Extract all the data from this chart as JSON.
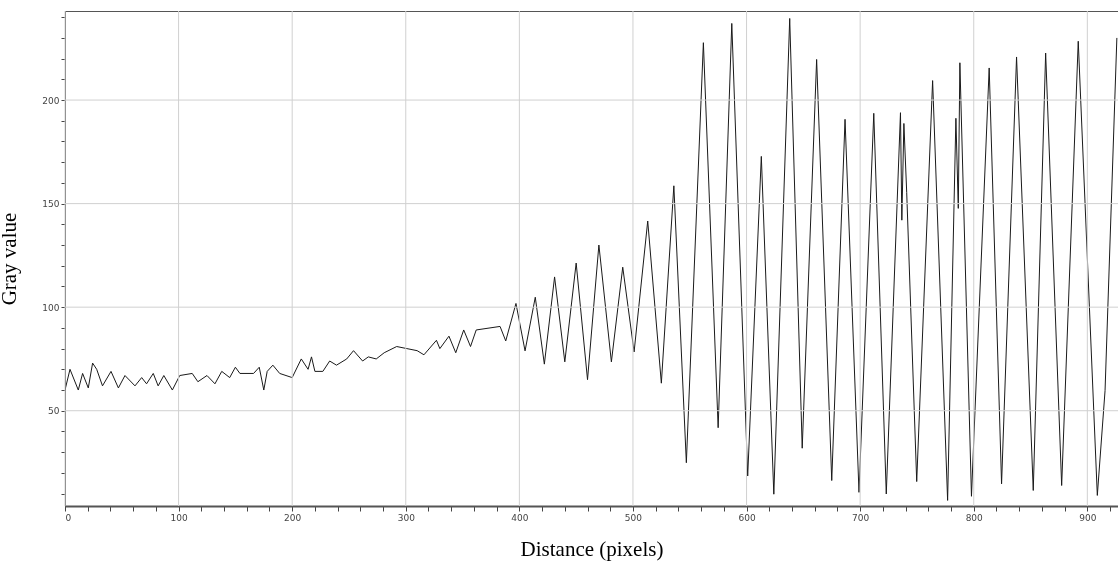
{
  "chart_data": {
    "type": "line",
    "xlabel": "Distance (pixels)",
    "ylabel": "Gray value",
    "xlim": [
      0,
      927
    ],
    "ylim": [
      4,
      243
    ],
    "xticks": [
      0,
      {
        "value": 20,
        "label": null
      },
      {
        "value": 40,
        "label": null
      },
      {
        "value": 60,
        "label": null
      },
      {
        "value": 80,
        "label": null
      },
      100,
      {
        "value": 120,
        "label": null
      },
      {
        "value": 140,
        "label": null
      },
      {
        "value": 160,
        "label": null
      },
      {
        "value": 180,
        "label": null
      },
      200,
      {
        "value": 220,
        "label": null
      },
      {
        "value": 240,
        "label": null
      },
      {
        "value": 260,
        "label": null
      },
      {
        "value": 280,
        "label": null
      },
      300,
      {
        "value": 320,
        "label": null
      },
      {
        "value": 340,
        "label": null
      },
      {
        "value": 360,
        "label": null
      },
      {
        "value": 380,
        "label": null
      },
      400,
      {
        "value": 420,
        "label": null
      },
      {
        "value": 440,
        "label": null
      },
      {
        "value": 460,
        "label": null
      },
      {
        "value": 480,
        "label": null
      },
      500,
      {
        "value": 520,
        "label": null
      },
      {
        "value": 540,
        "label": null
      },
      {
        "value": 560,
        "label": null
      },
      {
        "value": 580,
        "label": null
      },
      600,
      {
        "value": 620,
        "label": null
      },
      {
        "value": 640,
        "label": null
      },
      {
        "value": 660,
        "label": null
      },
      {
        "value": 680,
        "label": null
      },
      700,
      {
        "value": 720,
        "label": null
      },
      {
        "value": 740,
        "label": null
      },
      {
        "value": 760,
        "label": null
      },
      {
        "value": 780,
        "label": null
      },
      800,
      {
        "value": 820,
        "label": null
      },
      {
        "value": 840,
        "label": null
      },
      {
        "value": 860,
        "label": null
      },
      {
        "value": 880,
        "label": null
      },
      900,
      {
        "value": 920,
        "label": null
      }
    ],
    "yticks": [
      {
        "value": 10,
        "label": null
      },
      {
        "value": 20,
        "label": null
      },
      {
        "value": 30,
        "label": null
      },
      {
        "value": 40,
        "label": null
      },
      50,
      {
        "value": 60,
        "label": null
      },
      {
        "value": 70,
        "label": null
      },
      {
        "value": 80,
        "label": null
      },
      {
        "value": 90,
        "label": null
      },
      100,
      {
        "value": 110,
        "label": null
      },
      {
        "value": 120,
        "label": null
      },
      {
        "value": 130,
        "label": null
      },
      {
        "value": 140,
        "label": null
      },
      150,
      {
        "value": 160,
        "label": null
      },
      {
        "value": 170,
        "label": null
      },
      {
        "value": 180,
        "label": null
      },
      {
        "value": 190,
        "label": null
      },
      200,
      {
        "value": 210,
        "label": null
      },
      {
        "value": 220,
        "label": null
      },
      {
        "value": 230,
        "label": null
      },
      {
        "value": 240,
        "label": null
      }
    ],
    "grid": true,
    "marker": "none",
    "line_style": "solid",
    "series": [
      {
        "color": "#1a1a1a",
        "x": [
          0,
          4.4,
          11.7,
          15.5,
          20.5,
          24.3,
          27.9,
          33,
          40.5,
          47,
          52.8,
          61.6,
          67.5,
          71.8,
          77.7,
          82,
          87,
          94.5,
          101,
          112,
          117,
          125,
          132,
          138,
          145,
          150,
          154,
          166,
          171,
          175,
          178,
          183,
          189,
          200,
          208,
          214,
          217,
          220,
          227,
          233,
          239,
          248,
          254,
          262,
          267,
          274,
          281,
          292,
          301,
          310,
          316,
          327,
          330,
          338,
          344,
          351,
          357,
          362,
          383,
          388,
          397,
          405,
          414,
          422,
          431,
          440,
          450,
          460,
          470,
          481,
          491,
          501,
          513,
          525,
          536,
          547,
          562,
          575,
          587,
          601,
          613,
          624,
          638,
          649,
          661.7,
          675,
          686.7,
          699,
          712,
          723,
          735.5,
          736.7,
          738.5,
          741,
          749.8,
          763.8,
          777,
          784.3,
          786.4,
          787.8,
          798,
          813.6,
          824.5,
          837.7,
          852.4,
          863.3,
          877.4,
          892,
          908.8,
          915.6,
          926
        ],
        "values": [
          60,
          70,
          60,
          68,
          61,
          73,
          70,
          62,
          69,
          61,
          67,
          62,
          66,
          63,
          68,
          62,
          67,
          60,
          67,
          68,
          64,
          67,
          63,
          69,
          66,
          71,
          68,
          68,
          71,
          60,
          69,
          72,
          68,
          66,
          75,
          70,
          76,
          69,
          69,
          74,
          72,
          75,
          79,
          74,
          76,
          75,
          78,
          81,
          80,
          79,
          77,
          84,
          80,
          86,
          78,
          89,
          81,
          89,
          90.7,
          83.7,
          101.8,
          78.9,
          104.8,
          72.5,
          114.6,
          73.6,
          121.3,
          65,
          130,
          73.6,
          119.3,
          78.4,
          141.6,
          63.3,
          158.6,
          24.9,
          227.7,
          41.8,
          237,
          18.5,
          172.8,
          9.7,
          239.4,
          31.9,
          219.6,
          16.3,
          190.7,
          10.6,
          193.6,
          9.8,
          193.9,
          142,
          188.7,
          155.3,
          15.8,
          209.4,
          6.7,
          191.2,
          147.7,
          218,
          8.7,
          215.5,
          14.7,
          220.8,
          11.5,
          222.7,
          13.9,
          228.4,
          9.1,
          59.7,
          230
        ]
      }
    ]
  }
}
